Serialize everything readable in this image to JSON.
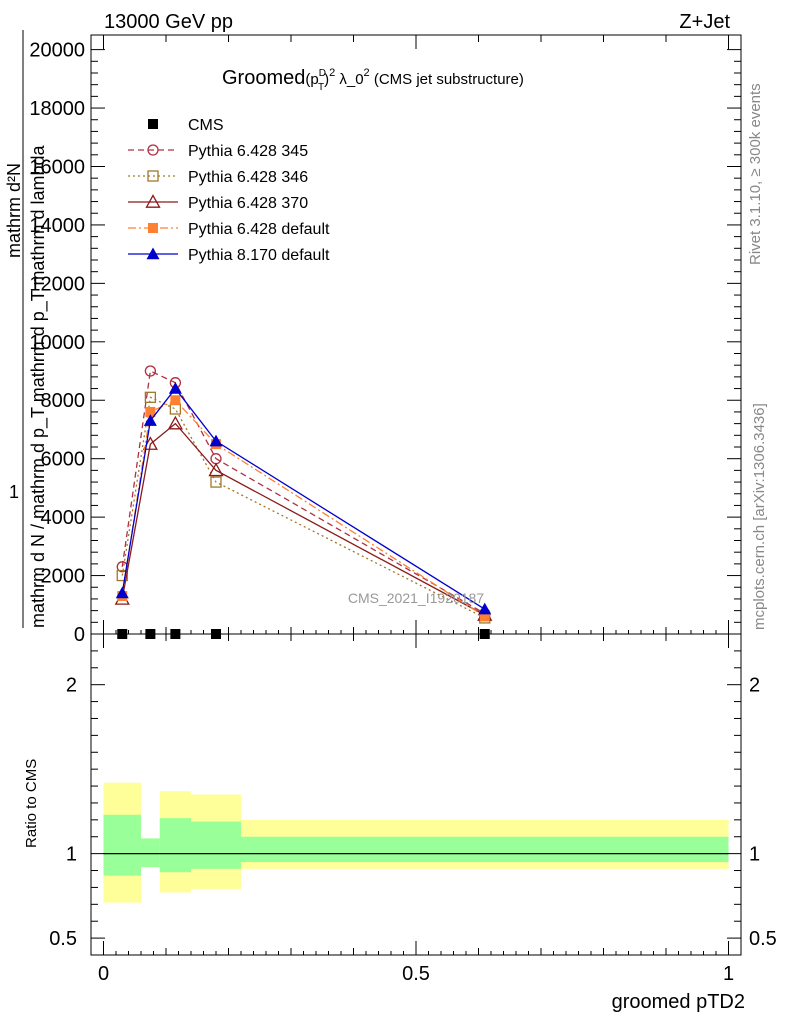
{
  "header": {
    "left": "13000 GeV pp",
    "right": "Z+Jet"
  },
  "side": {
    "rivet": "Rivet 3.1.10, ≥ 300k events",
    "mcplots": "mcplots.cern.ch [arXiv:1306.3436]"
  },
  "chart_data": [
    {
      "type": "line",
      "title": {
        "prefix": "Groomed",
        "p": "(p",
        "sup_d": "D",
        "sub_t": "T",
        "close": ")",
        "sup_2": "2",
        "lambda": " λ_0",
        "sup_2b": "2",
        "suffix": " (CMS jet substructure)"
      },
      "ylabel": {
        "numer": "mathrm d²N",
        "one": "1",
        "denom": "mathrm d N / mathrm d p_T mathrm d p_T mathrm d lambda"
      },
      "watermark": "CMS_2021_I1920187",
      "xlim": [
        -0.02,
        1.02
      ],
      "ylim": [
        0,
        20500
      ],
      "yticks": [
        0,
        2000,
        4000,
        6000,
        8000,
        10000,
        12000,
        14000,
        16000,
        18000,
        20000
      ],
      "ytick_labels": [
        "0",
        "2000",
        "4000",
        "6000",
        "8000",
        "10000",
        "12000",
        "14000",
        "16000",
        "18000",
        "20000"
      ],
      "legend": {
        "position": "top-left",
        "items": [
          {
            "label": "CMS",
            "color": "#000000",
            "marker": "filled-square",
            "dash": "none"
          },
          {
            "label": "Pythia 6.428 345",
            "color": "#b03040",
            "marker": "open-circle",
            "dash": "dashed"
          },
          {
            "label": "Pythia 6.428 346",
            "color": "#a07828",
            "marker": "open-square",
            "dash": "dotted"
          },
          {
            "label": "Pythia 6.428 370",
            "color": "#8b1a1a",
            "marker": "open-triangle",
            "dash": "solid"
          },
          {
            "label": "Pythia 6.428 default",
            "color": "#ff8030",
            "marker": "filled-square",
            "dash": "dashdot"
          },
          {
            "label": "Pythia 8.170 default",
            "color": "#0000cc",
            "marker": "filled-triangle",
            "dash": "solid"
          }
        ]
      },
      "x": [
        0.03,
        0.075,
        0.115,
        0.18,
        0.61
      ],
      "series": [
        {
          "name": "CMS",
          "values": [
            0,
            0,
            0,
            0,
            0
          ]
        },
        {
          "name": "Pythia 6.428 345",
          "values": [
            2300,
            9000,
            8600,
            6000,
            700
          ]
        },
        {
          "name": "Pythia 6.428 346",
          "values": [
            2000,
            8100,
            7700,
            5200,
            550
          ]
        },
        {
          "name": "Pythia 6.428 370",
          "values": [
            1200,
            6500,
            7200,
            5600,
            650
          ]
        },
        {
          "name": "Pythia 6.428 default",
          "values": [
            1300,
            7600,
            8000,
            6500,
            600
          ]
        },
        {
          "name": "Pythia 8.170 default",
          "values": [
            1400,
            7300,
            8400,
            6600,
            850
          ]
        }
      ]
    },
    {
      "type": "area",
      "ylabel": "Ratio to CMS",
      "xlabel": "groomed pTD2",
      "xlim": [
        -0.02,
        1.02
      ],
      "ylim": [
        0.4,
        2.3
      ],
      "yticks": [
        0.5,
        1,
        2
      ],
      "ytick_labels": [
        "0.5",
        "1",
        "2"
      ],
      "xticks": [
        0,
        0.5,
        1
      ],
      "xtick_labels": [
        "0",
        "0.5",
        "1"
      ],
      "bins": [
        {
          "lo": 0.0,
          "hi": 0.06,
          "inner": [
            0.87,
            1.23
          ],
          "outer": [
            0.71,
            1.42
          ]
        },
        {
          "lo": 0.06,
          "hi": 0.09,
          "inner": [
            0.92,
            1.09
          ],
          "outer": [
            0.92,
            1.09
          ]
        },
        {
          "lo": 0.09,
          "hi": 0.14,
          "inner": [
            0.89,
            1.21
          ],
          "outer": [
            0.77,
            1.37
          ]
        },
        {
          "lo": 0.14,
          "hi": 0.22,
          "inner": [
            0.91,
            1.19
          ],
          "outer": [
            0.79,
            1.35
          ]
        },
        {
          "lo": 0.22,
          "hi": 1.0,
          "inner": [
            0.95,
            1.1
          ],
          "outer": [
            0.91,
            1.2
          ]
        }
      ],
      "band_colors": {
        "inner": "#99ff99",
        "outer": "#ffff99"
      }
    }
  ]
}
